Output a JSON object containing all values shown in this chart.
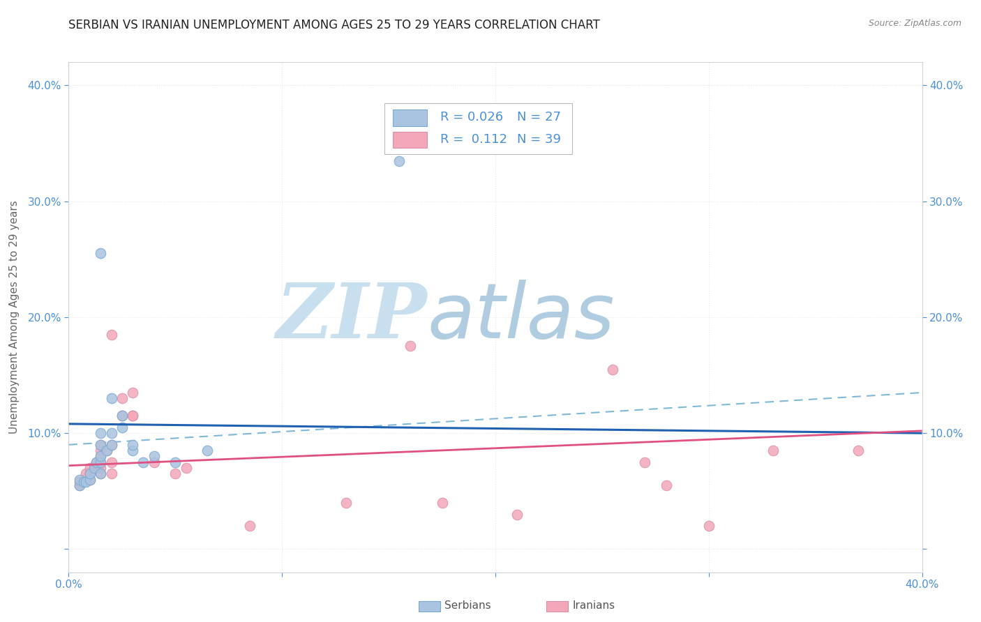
{
  "title": "SERBIAN VS IRANIAN UNEMPLOYMENT AMONG AGES 25 TO 29 YEARS CORRELATION CHART",
  "source": "Source: ZipAtlas.com",
  "ylabel": "Unemployment Among Ages 25 to 29 years",
  "xlim": [
    0.0,
    0.4
  ],
  "ylim": [
    -0.02,
    0.42
  ],
  "yticks": [
    0.0,
    0.1,
    0.2,
    0.3,
    0.4
  ],
  "ytick_labels": [
    "",
    "10.0%",
    "20.0%",
    "30.0%",
    "40.0%"
  ],
  "xticks": [
    0.0,
    0.1,
    0.2,
    0.3,
    0.4
  ],
  "xtick_labels": [
    "0.0%",
    "",
    "",
    "",
    "40.0%"
  ],
  "serbian_color": "#a8c4e0",
  "iranian_color": "#f4a7b9",
  "serbian_line_color": "#2060b0",
  "iranian_line_color": "#e05080",
  "dashed_line_color": "#80b8d8",
  "watermark_zip": "ZIP",
  "watermark_atlas": "atlas",
  "watermark_color_zip": "#c8dff0",
  "watermark_color_atlas": "#b0cce0",
  "serbian_scatter": [
    [
      0.005,
      0.055
    ],
    [
      0.005,
      0.06
    ],
    [
      0.007,
      0.058
    ],
    [
      0.008,
      0.058
    ],
    [
      0.01,
      0.06
    ],
    [
      0.01,
      0.065
    ],
    [
      0.012,
      0.07
    ],
    [
      0.013,
      0.075
    ],
    [
      0.015,
      0.065
    ],
    [
      0.015,
      0.075
    ],
    [
      0.015,
      0.08
    ],
    [
      0.015,
      0.09
    ],
    [
      0.015,
      0.1
    ],
    [
      0.018,
      0.085
    ],
    [
      0.02,
      0.09
    ],
    [
      0.02,
      0.1
    ],
    [
      0.02,
      0.13
    ],
    [
      0.025,
      0.105
    ],
    [
      0.025,
      0.115
    ],
    [
      0.03,
      0.085
    ],
    [
      0.03,
      0.09
    ],
    [
      0.035,
      0.075
    ],
    [
      0.04,
      0.08
    ],
    [
      0.05,
      0.075
    ],
    [
      0.065,
      0.085
    ],
    [
      0.015,
      0.255
    ],
    [
      0.155,
      0.335
    ]
  ],
  "iranian_scatter": [
    [
      0.005,
      0.055
    ],
    [
      0.005,
      0.058
    ],
    [
      0.007,
      0.06
    ],
    [
      0.008,
      0.065
    ],
    [
      0.01,
      0.06
    ],
    [
      0.01,
      0.065
    ],
    [
      0.01,
      0.07
    ],
    [
      0.012,
      0.07
    ],
    [
      0.013,
      0.075
    ],
    [
      0.015,
      0.065
    ],
    [
      0.015,
      0.07
    ],
    [
      0.015,
      0.075
    ],
    [
      0.015,
      0.08
    ],
    [
      0.015,
      0.085
    ],
    [
      0.015,
      0.09
    ],
    [
      0.018,
      0.085
    ],
    [
      0.02,
      0.065
    ],
    [
      0.02,
      0.075
    ],
    [
      0.02,
      0.09
    ],
    [
      0.02,
      0.185
    ],
    [
      0.025,
      0.115
    ],
    [
      0.025,
      0.13
    ],
    [
      0.03,
      0.115
    ],
    [
      0.03,
      0.115
    ],
    [
      0.03,
      0.135
    ],
    [
      0.04,
      0.075
    ],
    [
      0.05,
      0.065
    ],
    [
      0.055,
      0.07
    ],
    [
      0.13,
      0.04
    ],
    [
      0.16,
      0.175
    ],
    [
      0.175,
      0.04
    ],
    [
      0.21,
      0.03
    ],
    [
      0.255,
      0.155
    ],
    [
      0.27,
      0.075
    ],
    [
      0.28,
      0.055
    ],
    [
      0.3,
      0.02
    ],
    [
      0.33,
      0.085
    ],
    [
      0.37,
      0.085
    ],
    [
      0.085,
      0.02
    ]
  ],
  "bg_color": "#ffffff",
  "grid_color": "#e8e8e8",
  "axis_color": "#cccccc",
  "tick_color": "#4a90d9",
  "title_fontsize": 12,
  "axis_label_fontsize": 11,
  "tick_fontsize": 11,
  "legend_fontsize": 13,
  "serbian_line_y0": 0.108,
  "serbian_line_y1": 0.1,
  "iranian_line_y0": 0.072,
  "iranian_line_y1": 0.102,
  "dashed_line_y0": 0.09,
  "dashed_line_y1": 0.135
}
